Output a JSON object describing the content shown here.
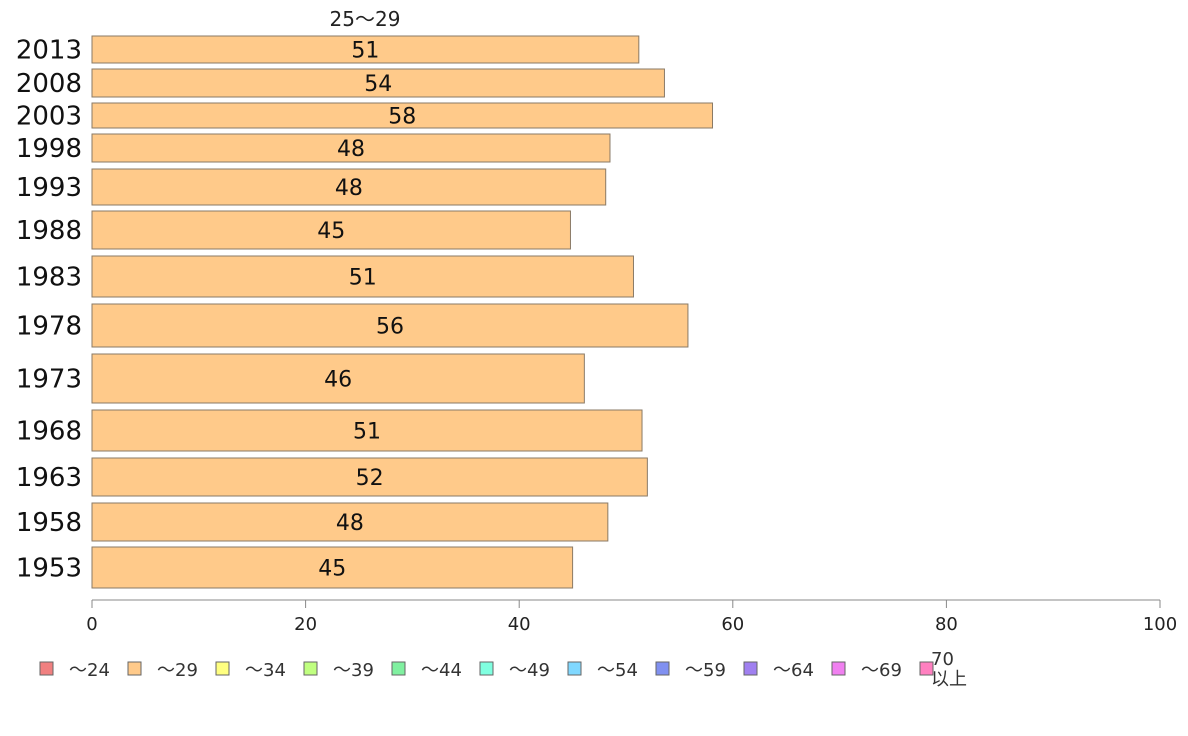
{
  "chart_data": {
    "type": "bar",
    "orientation": "horizontal",
    "series_title": "25～29",
    "categories": [
      "2013",
      "2008",
      "2003",
      "1998",
      "1993",
      "1988",
      "1983",
      "1978",
      "1973",
      "1968",
      "1963",
      "1958",
      "1953"
    ],
    "series": [
      {
        "name": "～29",
        "color": "#ffca8a",
        "values": [
          51.2,
          53.6,
          58.1,
          48.5,
          48.1,
          44.8,
          50.7,
          55.8,
          46.1,
          51.5,
          52.0,
          48.3,
          45.0
        ],
        "labels": [
          "51",
          "54",
          "58",
          "48",
          "48",
          "45",
          "51",
          "56",
          "46",
          "51",
          "52",
          "48",
          "45"
        ]
      }
    ],
    "xlim": [
      0,
      100
    ],
    "x_ticks": [
      "0",
      "20",
      "40",
      "60",
      "80",
      "100"
    ],
    "legend": {
      "position": "bottom",
      "items": [
        {
          "label": "～24",
          "color": "#f08080"
        },
        {
          "label": "～29",
          "color": "#ffca8a"
        },
        {
          "label": "～34",
          "color": "#ffff80"
        },
        {
          "label": "～39",
          "color": "#c0ff80"
        },
        {
          "label": "～44",
          "color": "#80f0a0"
        },
        {
          "label": "～49",
          "color": "#80ffe0"
        },
        {
          "label": "～54",
          "color": "#80d8ff"
        },
        {
          "label": "～59",
          "color": "#8090f0"
        },
        {
          "label": "～64",
          "color": "#a080f0"
        },
        {
          "label": "～69",
          "color": "#f080f0"
        },
        {
          "label": "70\n以上",
          "color": "#ff80c0"
        }
      ]
    },
    "grid": false
  }
}
